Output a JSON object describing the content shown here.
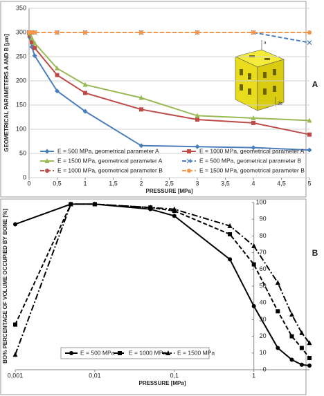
{
  "chart_data": [
    {
      "type": "line",
      "panel": "A",
      "xlabel": "PRESSURE [MPa]",
      "ylabel": "GEOMETRICAL PARAMETERS A AND B [µm]",
      "xlim": [
        0,
        5
      ],
      "ylim": [
        0,
        350
      ],
      "xticks": [
        0,
        {
          "value": 0.5,
          "label": "0,5"
        },
        1,
        {
          "value": 1.5,
          "label": "1,5"
        },
        2,
        {
          "value": 2.5,
          "label": "2,5"
        },
        3,
        {
          "value": 3.5,
          "label": "3,5"
        },
        4,
        {
          "value": 4.5,
          "label": "4,5"
        },
        5
      ],
      "yticks": [
        0,
        50,
        100,
        150,
        200,
        250,
        300,
        350
      ],
      "grid": true,
      "log_x": false,
      "inset_labels": [
        "a",
        "2b"
      ],
      "series": [
        {
          "name": "E = 500 MPa, geometrical parameter A",
          "color": "#4a7ebb",
          "dash": "solid",
          "marker": "diamond",
          "x": [
            0,
            0.01,
            0.05,
            0.1,
            0.5,
            1,
            2,
            3,
            4,
            5
          ],
          "values": [
            300,
            290,
            270,
            252,
            179,
            137,
            66,
            64,
            62,
            57
          ]
        },
        {
          "name": "E = 1000 MPa, geometrical parameter A",
          "color": "#be4b48",
          "dash": "solid",
          "marker": "square",
          "x": [
            0,
            0.01,
            0.05,
            0.1,
            0.5,
            1,
            2,
            3,
            4,
            5
          ],
          "values": [
            300,
            295,
            280,
            268,
            212,
            175,
            141,
            120,
            113,
            89
          ]
        },
        {
          "name": "E = 1500 MPa, geometrical parameter A",
          "color": "#98b954",
          "dash": "solid",
          "marker": "triangle",
          "x": [
            0,
            0.01,
            0.05,
            0.1,
            0.5,
            1,
            2,
            3,
            4,
            5
          ],
          "values": [
            300,
            298,
            288,
            278,
            226,
            192,
            165,
            128,
            123,
            118
          ]
        },
        {
          "name": "E = 500 MPa, geometrical parameter B",
          "color": "#4a7ebb",
          "dash": "dashed",
          "marker": "x",
          "x": [
            0,
            0.01,
            0.05,
            0.1,
            0.5,
            1,
            2,
            3,
            4,
            5
          ],
          "values": [
            300,
            300,
            300,
            300,
            300,
            300,
            300,
            300,
            300,
            279
          ]
        },
        {
          "name": "E = 1000 MPa, geometrical parameter B",
          "color": "#be4b48",
          "dash": "dashed",
          "marker": "circle",
          "x": [
            0,
            0.01,
            0.05,
            0.1,
            0.5,
            1,
            2,
            3,
            4,
            5
          ],
          "values": [
            300,
            300,
            300,
            300,
            300,
            300,
            300,
            300,
            300,
            300
          ]
        },
        {
          "name": "E = 1500 MPa, geometrical parameter B",
          "color": "#f79646",
          "dash": "dashed",
          "marker": "circle",
          "x": [
            0,
            0.01,
            0.05,
            0.1,
            0.5,
            1,
            2,
            3,
            4,
            5
          ],
          "values": [
            300,
            300,
            300,
            300,
            300,
            300,
            300,
            300,
            300,
            300
          ]
        }
      ]
    },
    {
      "type": "line",
      "panel": "B",
      "xlabel": "PRESSURE [MPa]",
      "ylabel": "BO% PERCENTAGE OF VOLUME OCCUPIED BY BONE [%]",
      "xlim": [
        0.001,
        5
      ],
      "ylim": [
        0,
        100
      ],
      "xticks": [
        {
          "value": 0.001,
          "label": "0,001"
        },
        {
          "value": 0.01,
          "label": "0,01"
        },
        {
          "value": 0.1,
          "label": "0,1"
        },
        1
      ],
      "yticks": [
        0,
        10,
        20,
        30,
        40,
        50,
        60,
        70,
        80,
        90,
        100
      ],
      "grid": false,
      "log_x": true,
      "y_axis_at": 1,
      "series": [
        {
          "name": "E = 500 MPa",
          "color": "#000000",
          "dash": "solid",
          "marker": "circle",
          "x": [
            0.001,
            0.005,
            0.01,
            0.05,
            0.1,
            0.5,
            1,
            2,
            3,
            4,
            5
          ],
          "values": [
            87,
            99,
            99,
            96,
            92,
            66,
            38,
            13,
            6,
            3,
            2.5
          ]
        },
        {
          "name": "E = 1000 MPa",
          "color": "#000000",
          "dash": "dashed",
          "marker": "square",
          "x": [
            0.001,
            0.005,
            0.01,
            0.05,
            0.1,
            0.5,
            1,
            2,
            3,
            4,
            5
          ],
          "values": [
            27,
            99,
            99,
            97,
            95,
            81,
            63,
            35,
            20,
            13,
            7
          ]
        },
        {
          "name": "E = 1500 MPa",
          "color": "#000000",
          "dash": "dashdot",
          "marker": "triangle",
          "x": [
            0.001,
            0.005,
            0.01,
            0.05,
            0.1,
            0.5,
            1,
            2,
            3,
            4,
            5
          ],
          "values": [
            9,
            99,
            99,
            97,
            96,
            86,
            74,
            52,
            33,
            22,
            16
          ]
        }
      ]
    }
  ]
}
